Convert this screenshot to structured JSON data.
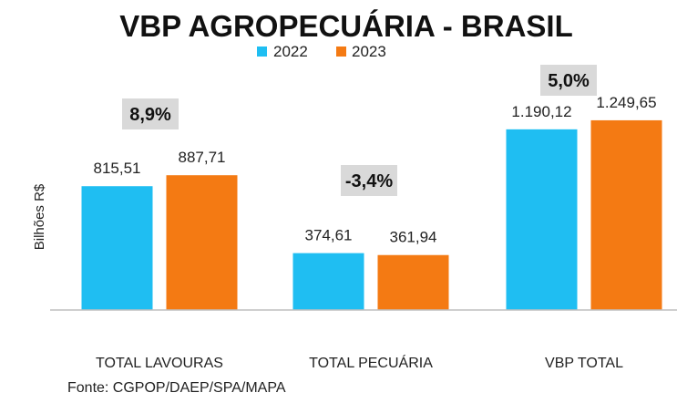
{
  "chart_data": {
    "type": "bar",
    "title": "VBP AGROPECUÁRIA - BRASIL",
    "ylabel": "Bilhões R$",
    "xlabel": "",
    "categories": [
      "TOTAL LAVOURAS",
      "TOTAL PECUÁRIA",
      "VBP TOTAL"
    ],
    "series": [
      {
        "name": "2022",
        "color": "#1FBEF2",
        "values": [
          815.51,
          374.61,
          1190.12
        ],
        "labels": [
          "815,51",
          "374,61",
          "1.190,12"
        ]
      },
      {
        "name": "2023",
        "color": "#F47A13",
        "values": [
          887.71,
          361.94,
          1249.65
        ],
        "labels": [
          "887,71",
          "361,94",
          "1.249,65"
        ]
      }
    ],
    "changes": [
      "8,9%",
      "-3,4%",
      "5,0%"
    ],
    "ylim": [
      0,
      1400
    ],
    "grid": false,
    "legend": "top-center",
    "source": "Fonte: CGPOP/DAEP/SPA/MAPA"
  },
  "colors": {
    "axis": "#BFBFBF",
    "change_box": "#D9D9D9"
  }
}
